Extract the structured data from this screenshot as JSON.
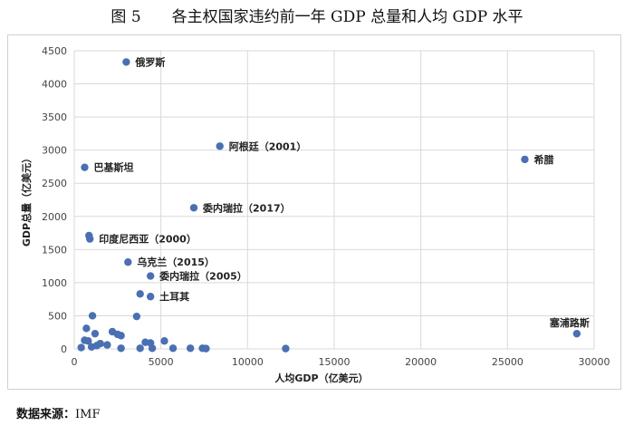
{
  "title": "图 5　　各主权国家违约前一年 GDP 总量和人均 GDP 水平",
  "source": {
    "label": "数据来源：",
    "value": "IMF"
  },
  "colors": {
    "point": "#4a6fb3",
    "grid": "#d9d9d9",
    "axis": "#bfbfbf"
  },
  "chart_data": {
    "type": "scatter",
    "title": "图 5　　各主权国家违约前一年 GDP 总量和人均 GDP 水平",
    "xlabel": "人均GDP（亿美元）",
    "ylabel": "GDP总量（亿美元）",
    "xlim": [
      0,
      30000
    ],
    "ylim": [
      0,
      4500
    ],
    "xticks": [
      0,
      5000,
      10000,
      15000,
      20000,
      25000,
      30000
    ],
    "yticks": [
      0,
      500,
      1000,
      1500,
      2000,
      2500,
      3000,
      3500,
      4000,
      4500
    ],
    "grid": true,
    "legend": "none",
    "points": [
      {
        "x": 3000,
        "y": 4330,
        "label": "俄罗斯"
      },
      {
        "x": 8400,
        "y": 3060,
        "label": "阿根廷（2001）"
      },
      {
        "x": 26000,
        "y": 2860,
        "label": "希腊"
      },
      {
        "x": 600,
        "y": 2740,
        "label": "巴基斯坦"
      },
      {
        "x": 6900,
        "y": 2130,
        "label": "委内瑞拉（2017）"
      },
      {
        "x": 850,
        "y": 1710,
        "label": ""
      },
      {
        "x": 900,
        "y": 1660,
        "label": "印度尼西亚（2000）"
      },
      {
        "x": 3100,
        "y": 1310,
        "label": "乌克兰（2015）"
      },
      {
        "x": 4400,
        "y": 1100,
        "label": "委内瑞拉（2005）"
      },
      {
        "x": 3800,
        "y": 830,
        "label": ""
      },
      {
        "x": 4400,
        "y": 790,
        "label": "土耳其"
      },
      {
        "x": 29000,
        "y": 230,
        "label": "塞浦路斯"
      },
      {
        "x": 1050,
        "y": 500,
        "label": ""
      },
      {
        "x": 3600,
        "y": 490,
        "label": ""
      },
      {
        "x": 700,
        "y": 310,
        "label": ""
      },
      {
        "x": 2200,
        "y": 260,
        "label": ""
      },
      {
        "x": 1200,
        "y": 230,
        "label": ""
      },
      {
        "x": 2500,
        "y": 220,
        "label": ""
      },
      {
        "x": 2700,
        "y": 200,
        "label": ""
      },
      {
        "x": 600,
        "y": 130,
        "label": ""
      },
      {
        "x": 800,
        "y": 120,
        "label": ""
      },
      {
        "x": 5200,
        "y": 120,
        "label": ""
      },
      {
        "x": 4100,
        "y": 100,
        "label": ""
      },
      {
        "x": 4400,
        "y": 90,
        "label": ""
      },
      {
        "x": 1500,
        "y": 80,
        "label": ""
      },
      {
        "x": 1900,
        "y": 60,
        "label": ""
      },
      {
        "x": 1300,
        "y": 50,
        "label": ""
      },
      {
        "x": 1000,
        "y": 30,
        "label": ""
      },
      {
        "x": 400,
        "y": 20,
        "label": ""
      },
      {
        "x": 2700,
        "y": 10,
        "label": ""
      },
      {
        "x": 3800,
        "y": 10,
        "label": ""
      },
      {
        "x": 4500,
        "y": 10,
        "label": ""
      },
      {
        "x": 5700,
        "y": 10,
        "label": ""
      },
      {
        "x": 6700,
        "y": 10,
        "label": ""
      },
      {
        "x": 7400,
        "y": 10,
        "label": ""
      },
      {
        "x": 7600,
        "y": 5,
        "label": ""
      },
      {
        "x": 12200,
        "y": 5,
        "label": ""
      }
    ]
  }
}
